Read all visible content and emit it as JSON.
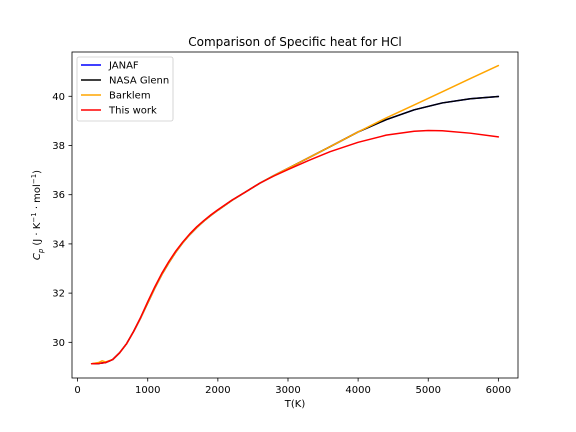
{
  "colors": {
    "janaf": "#0000ff",
    "nasa": "#000000",
    "barklem": "#ffa500",
    "this_work": "#ff0000"
  },
  "chart_data": {
    "type": "line",
    "title": "Comparison of Specific heat for HCl",
    "xlabel": "T(K)",
    "ylabel": "C_p (J·K⁻¹·mol⁻¹)",
    "ylabel_parts": {
      "symbol": "C",
      "subscript": "p",
      "units_open": "(J · K",
      "exp1": "−1",
      "units_mid": " · mol",
      "exp2": "−1",
      "units_close": ")"
    },
    "xlim": [
      -80,
      6280
    ],
    "ylim": [
      28.55,
      41.8
    ],
    "xticks": [
      0,
      1000,
      2000,
      3000,
      4000,
      5000,
      6000
    ],
    "xtick_labels": [
      "0",
      "1000",
      "2000",
      "3000",
      "4000",
      "5000",
      "6000"
    ],
    "yticks": [
      30,
      32,
      34,
      36,
      38,
      40
    ],
    "ytick_labels": [
      "30",
      "32",
      "34",
      "36",
      "38",
      "40"
    ],
    "grid": false,
    "legend_position": "top-left",
    "series": [
      {
        "name": "JANAF",
        "color": "#0000ff",
        "x": [
          200,
          300,
          400,
          500,
          600,
          700,
          800,
          900,
          1000,
          1100,
          1200,
          1300,
          1400,
          1500,
          1600,
          1700,
          1800,
          1900,
          2000,
          2200,
          2400,
          2600,
          2800,
          3000,
          3300,
          3600,
          4000,
          4400,
          4800,
          5200,
          5600,
          6000
        ],
        "y": [
          29.13,
          29.14,
          29.18,
          29.3,
          29.58,
          29.95,
          30.45,
          31.0,
          31.6,
          32.2,
          32.75,
          33.23,
          33.67,
          34.05,
          34.38,
          34.67,
          34.93,
          35.16,
          35.37,
          35.77,
          36.12,
          36.47,
          36.78,
          37.07,
          37.51,
          37.95,
          38.55,
          39.05,
          39.45,
          39.73,
          39.9,
          39.99
        ]
      },
      {
        "name": "NASA Glenn",
        "color": "#000000",
        "x": [
          200,
          300,
          400,
          500,
          600,
          700,
          800,
          900,
          1000,
          1100,
          1200,
          1300,
          1400,
          1500,
          1600,
          1700,
          1800,
          1900,
          2000,
          2200,
          2400,
          2600,
          2800,
          3000,
          3300,
          3600,
          4000,
          4400,
          4800,
          5200,
          5600,
          6000
        ],
        "y": [
          29.13,
          29.14,
          29.18,
          29.3,
          29.58,
          29.95,
          30.45,
          31.0,
          31.6,
          32.2,
          32.75,
          33.23,
          33.67,
          34.05,
          34.38,
          34.67,
          34.93,
          35.16,
          35.37,
          35.77,
          36.12,
          36.47,
          36.78,
          37.07,
          37.51,
          37.95,
          38.55,
          39.05,
          39.45,
          39.73,
          39.9,
          39.99
        ]
      },
      {
        "name": "Barklem",
        "color": "#ffa500",
        "x": [
          200,
          300,
          350,
          400,
          500,
          600,
          700,
          800,
          900,
          1000,
          1100,
          1200,
          1300,
          1400,
          1500,
          1600,
          1700,
          1800,
          1900,
          2000,
          2200,
          2400,
          2600,
          2800,
          3000,
          3300,
          3600,
          4000,
          4400,
          4800,
          5200,
          5600,
          6000
        ],
        "y": [
          29.13,
          29.18,
          29.25,
          29.2,
          29.3,
          29.58,
          29.95,
          30.45,
          31.0,
          31.6,
          32.2,
          32.75,
          33.23,
          33.67,
          34.05,
          34.38,
          34.67,
          34.93,
          35.16,
          35.37,
          35.77,
          36.12,
          36.47,
          36.78,
          37.07,
          37.51,
          37.95,
          38.55,
          39.12,
          39.65,
          40.18,
          40.72,
          41.25
        ]
      },
      {
        "name": "This work",
        "color": "#ff0000",
        "x": [
          200,
          300,
          400,
          500,
          600,
          700,
          800,
          900,
          1000,
          1100,
          1200,
          1300,
          1400,
          1500,
          1600,
          1700,
          1800,
          1900,
          2000,
          2200,
          2400,
          2600,
          2800,
          3000,
          3300,
          3600,
          4000,
          4400,
          4800,
          5000,
          5200,
          5600,
          6000
        ],
        "y": [
          29.13,
          29.14,
          29.18,
          29.3,
          29.58,
          29.95,
          30.45,
          31.02,
          31.65,
          32.25,
          32.8,
          33.28,
          33.71,
          34.08,
          34.41,
          34.7,
          34.95,
          35.18,
          35.39,
          35.78,
          36.12,
          36.47,
          36.76,
          37.02,
          37.4,
          37.75,
          38.13,
          38.42,
          38.58,
          38.61,
          38.6,
          38.5,
          38.35
        ]
      }
    ]
  }
}
